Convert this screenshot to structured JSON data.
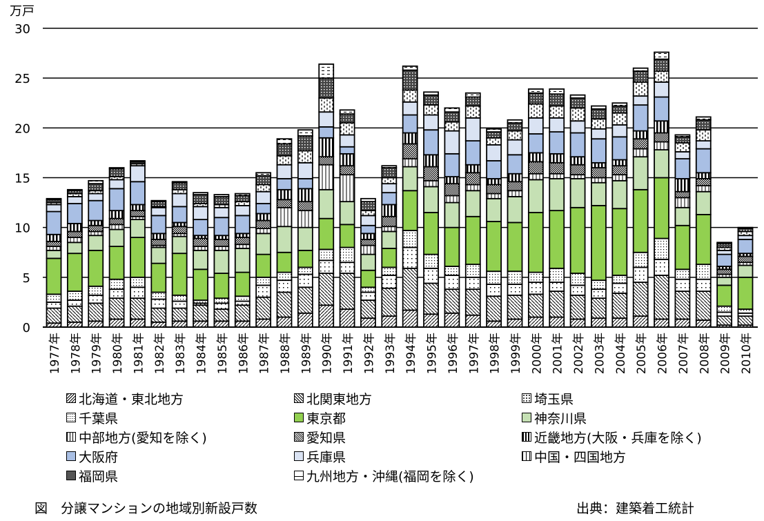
{
  "chart_data": {
    "type": "bar",
    "stacked": true,
    "title": "",
    "ylabel": "万戸",
    "xlabel": "",
    "ylim": [
      0,
      30
    ],
    "yticks": [
      "0",
      "5",
      "10",
      "15",
      "20",
      "25",
      "30"
    ],
    "grid": true,
    "legend_placement": "bottom",
    "categories": [
      "1977年",
      "1978年",
      "1979年",
      "1980年",
      "1981年",
      "1982年",
      "1983年",
      "1984年",
      "1985年",
      "1986年",
      "1987年",
      "1988年",
      "1989年",
      "1990年",
      "1991年",
      "1992年",
      "1993年",
      "1994年",
      "1995年",
      "1996年",
      "1997年",
      "1998年",
      "1999年",
      "2000年",
      "2001年",
      "2002年",
      "2003年",
      "2004年",
      "2005年",
      "2006年",
      "2007年",
      "2008年",
      "2009年",
      "2010年"
    ],
    "series": [
      {
        "name": "北海道・東北地方",
        "pattern": "diag-fwd",
        "values": [
          0.4,
          0.5,
          0.6,
          0.8,
          0.8,
          0.5,
          0.6,
          0.6,
          0.6,
          0.6,
          0.8,
          1.0,
          1.4,
          2.2,
          1.8,
          0.9,
          1.1,
          1.7,
          1.3,
          1.4,
          1.2,
          0.6,
          0.8,
          1.0,
          1.0,
          0.8,
          0.9,
          0.9,
          1.1,
          0.8,
          0.8,
          0.7,
          0.2,
          0.2
        ]
      },
      {
        "name": "北関東地方",
        "pattern": "diag-back",
        "values": [
          1.5,
          1.6,
          1.8,
          2.1,
          2.1,
          1.4,
          1.3,
          1.6,
          1.2,
          1.6,
          2.2,
          2.5,
          2.6,
          3.2,
          3.6,
          1.8,
          2.8,
          4.2,
          3.1,
          2.4,
          2.6,
          2.5,
          2.4,
          2.3,
          2.6,
          2.4,
          2.0,
          2.5,
          3.4,
          4.4,
          2.8,
          2.9,
          0.9,
          0.9
        ]
      },
      {
        "name": "埼玉県",
        "pattern": "grid-dots",
        "values": [
          0.6,
          0.6,
          0.8,
          0.9,
          1.1,
          0.9,
          0.7,
          0.2,
          0.6,
          0.4,
          1.2,
          1.2,
          1.3,
          1.3,
          1.1,
          0.8,
          1.3,
          2.1,
          1.5,
          1.4,
          1.2,
          1.2,
          1.1,
          1.2,
          0.9,
          1.0,
          0.9,
          1.0,
          1.5,
          1.6,
          1.2,
          1.2,
          0.4,
          0.3
        ]
      },
      {
        "name": "千葉県",
        "pattern": "dots",
        "values": [
          0.8,
          0.9,
          0.9,
          1.0,
          1.0,
          0.7,
          0.6,
          0.3,
          0.5,
          0.5,
          0.8,
          0.8,
          0.7,
          1.1,
          1.5,
          0.5,
          0.8,
          1.7,
          1.4,
          0.9,
          1.3,
          1.3,
          1.3,
          1.0,
          1.4,
          1.2,
          0.9,
          0.8,
          1.5,
          2.1,
          1.0,
          1.5,
          0.6,
          0.4
        ]
      },
      {
        "name": "東京都",
        "pattern": "green",
        "values": [
          3.6,
          3.8,
          3.6,
          3.3,
          4.0,
          2.9,
          4.2,
          3.1,
          2.5,
          2.4,
          2.3,
          2.0,
          1.7,
          3.1,
          2.3,
          1.7,
          1.9,
          4.0,
          4.2,
          3.9,
          4.8,
          5.0,
          4.9,
          6.0,
          5.8,
          6.6,
          7.5,
          6.7,
          6.3,
          6.1,
          4.4,
          5.0,
          2.1,
          3.2
        ]
      },
      {
        "name": "神奈川県",
        "pattern": "lightgreen",
        "values": [
          0.8,
          1.1,
          1.5,
          1.7,
          1.8,
          1.6,
          1.7,
          1.9,
          2.3,
          2.4,
          2.1,
          2.6,
          2.3,
          2.9,
          2.3,
          1.6,
          1.7,
          2.4,
          2.6,
          2.5,
          2.6,
          2.3,
          2.6,
          3.3,
          3.2,
          2.9,
          2.3,
          2.8,
          3.3,
          2.8,
          1.8,
          2.3,
          0.8,
          1.2
        ]
      },
      {
        "name": "中部地方(愛知を除く)",
        "pattern": "vlines",
        "values": [
          0.4,
          0.5,
          0.4,
          0.5,
          0.3,
          0.2,
          0.3,
          0.4,
          0.4,
          0.4,
          0.5,
          1.9,
          1.7,
          2.5,
          2.7,
          0.9,
          0.5,
          0.8,
          0.6,
          0.7,
          0.6,
          0.5,
          0.6,
          0.6,
          0.5,
          0.4,
          0.5,
          0.6,
          0.8,
          0.8,
          1.0,
          0.6,
          0.3,
          0.3
        ]
      },
      {
        "name": "愛知県",
        "pattern": "checker",
        "values": [
          0.5,
          0.6,
          0.6,
          0.6,
          0.6,
          0.6,
          0.7,
          0.8,
          0.7,
          0.7,
          0.8,
          0.8,
          0.9,
          0.8,
          0.9,
          0.6,
          1.0,
          1.5,
          1.4,
          1.2,
          1.2,
          0.9,
          0.9,
          1.2,
          1.1,
          1.0,
          1.0,
          0.9,
          1.0,
          0.9,
          0.6,
          0.7,
          0.5,
          0.6
        ]
      },
      {
        "name": "近畿地方(大阪・兵庫を除く)",
        "pattern": "thickv",
        "values": [
          0.7,
          0.8,
          0.5,
          0.8,
          0.6,
          0.6,
          0.4,
          0.3,
          0.4,
          0.4,
          0.7,
          1.0,
          1.3,
          1.9,
          1.2,
          0.6,
          1.2,
          1.1,
          1.2,
          0.7,
          0.8,
          0.6,
          0.8,
          0.9,
          0.9,
          0.8,
          0.5,
          0.6,
          0.8,
          1.2,
          1.3,
          0.6,
          0.3,
          0.3
        ]
      },
      {
        "name": "大阪府",
        "pattern": "blue",
        "values": [
          2.3,
          2.0,
          2.0,
          2.2,
          2.3,
          1.8,
          1.6,
          1.6,
          1.8,
          1.8,
          1.0,
          1.1,
          1.0,
          1.1,
          0.7,
          0.8,
          1.2,
          1.8,
          2.5,
          2.3,
          2.4,
          1.8,
          1.9,
          1.9,
          2.2,
          2.4,
          2.4,
          2.3,
          2.6,
          2.4,
          2.0,
          2.4,
          1.2,
          1.4
        ]
      },
      {
        "name": "兵庫県",
        "pattern": "lightblue",
        "values": [
          0.7,
          0.7,
          0.7,
          0.9,
          1.6,
          0.8,
          1.3,
          1.3,
          1.0,
          1.0,
          1.2,
          1.4,
          1.6,
          1.5,
          1.2,
          1.0,
          0.9,
          1.3,
          1.5,
          2.3,
          2.3,
          1.6,
          1.5,
          1.6,
          1.4,
          1.2,
          1.0,
          1.2,
          0.9,
          1.5,
          0.7,
          0.8,
          0.4,
          0.4
        ]
      },
      {
        "name": "中国・四国地方",
        "pattern": "brick",
        "values": [
          0.2,
          0.3,
          0.3,
          0.3,
          0.2,
          0.1,
          0.4,
          0.3,
          0.3,
          0.4,
          0.7,
          0.9,
          1.2,
          1.4,
          1.2,
          0.5,
          0.6,
          1.2,
          1.0,
          0.9,
          1.2,
          0.7,
          0.9,
          1.4,
          1.2,
          1.3,
          1.0,
          1.2,
          1.4,
          1.1,
          0.9,
          1.1,
          0.3,
          0.4
        ]
      },
      {
        "name": "福岡県",
        "pattern": "crosshatch",
        "values": [
          0.3,
          0.3,
          0.7,
          0.8,
          0.2,
          0.5,
          0.7,
          0.9,
          0.8,
          0.6,
          0.9,
          1.2,
          1.5,
          2.0,
          0.9,
          0.9,
          1.0,
          2.0,
          1.0,
          1.0,
          0.9,
          0.6,
          0.8,
          1.1,
          1.2,
          1.0,
          1.0,
          0.7,
          1.1,
          1.2,
          0.6,
          1.0,
          0.4,
          0.3
        ]
      },
      {
        "name": "九州地方・沖縄(福岡を除く)",
        "pattern": "dash",
        "values": [
          0.1,
          0.1,
          0.3,
          0.1,
          0.1,
          0.1,
          0.1,
          0.2,
          0.2,
          0.2,
          0.3,
          0.5,
          0.6,
          1.4,
          0.4,
          0.3,
          0.2,
          0.4,
          0.3,
          0.4,
          0.4,
          0.3,
          0.3,
          0.4,
          0.5,
          0.3,
          0.3,
          0.3,
          0.3,
          0.7,
          0.2,
          0.3,
          0.1,
          0.1
        ]
      }
    ]
  },
  "caption": "図　分譲マンションの地域別新設戸数",
  "source": "出典：建築着工統計"
}
